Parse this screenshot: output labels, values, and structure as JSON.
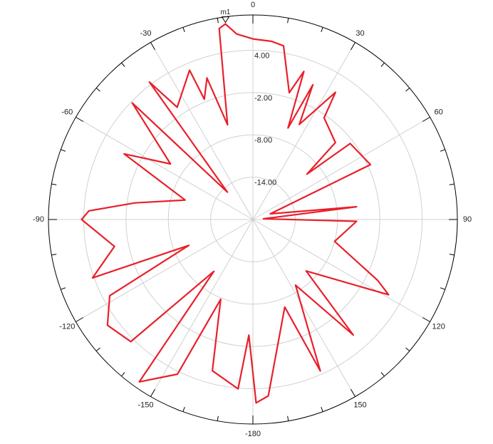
{
  "chart_data": {
    "type": "polar",
    "thetaticks": [
      -180,
      -150,
      -120,
      -90,
      -60,
      -30,
      0,
      30,
      60,
      90,
      120,
      150
    ],
    "rlim": [
      -20,
      9
    ],
    "rticks": [
      {
        "value": -14,
        "label": "-14.00"
      },
      {
        "value": -8,
        "label": "-8.00"
      },
      {
        "value": -2,
        "label": "-2.00"
      },
      {
        "value": 4,
        "label": "4.00"
      }
    ],
    "grid": true,
    "series": [
      {
        "color": "#e8202a",
        "x": [
          -178,
          -175,
          -165,
          -158,
          -154,
          -145,
          -143,
          -135,
          -126,
          -118,
          -112,
          -110,
          -101,
          -90,
          -87,
          -82,
          -74,
          -63,
          -56,
          -46,
          -43,
          -37,
          -34,
          -23,
          -22,
          -18,
          -15,
          -10,
          -8,
          -5,
          0,
          6,
          10,
          16,
          19,
          21,
          24,
          26,
          33,
          35,
          47,
          50,
          52,
          65,
          72,
          83,
          86,
          91,
          105,
          116,
          119,
          134,
          139,
          147,
          156,
          160,
          175,
          179
        ],
        "values": [
          -3.6,
          4.1,
          2.2,
          -7.8,
          4.4,
          8.1,
          -10.8,
          4.5,
          5.5,
          3,
          -10.2,
          4.2,
          0,
          4.3,
          3.3,
          -3.1,
          -10,
          0.5,
          -5.9,
          3.8,
          -14.7,
          4.4,
          -0.8,
          3,
          -1.6,
          1.1,
          -6.1,
          7.5,
          8,
          6.4,
          5.6,
          5.4,
          5,
          -1.3,
          2.2,
          -6.1,
          0.9,
          -5,
          1.5,
          -2.4,
          -4,
          -10,
          -2.5,
          -1.6,
          -17.4,
          -5.2,
          -18.5,
          -5.3,
          -8,
          -0.3,
          2,
          -9.5,
          1.7,
          -8.9,
          3.5,
          -6.8,
          5.1,
          6
        ]
      }
    ],
    "annotations": [
      {
        "text": "m1",
        "x": -8
      }
    ]
  }
}
